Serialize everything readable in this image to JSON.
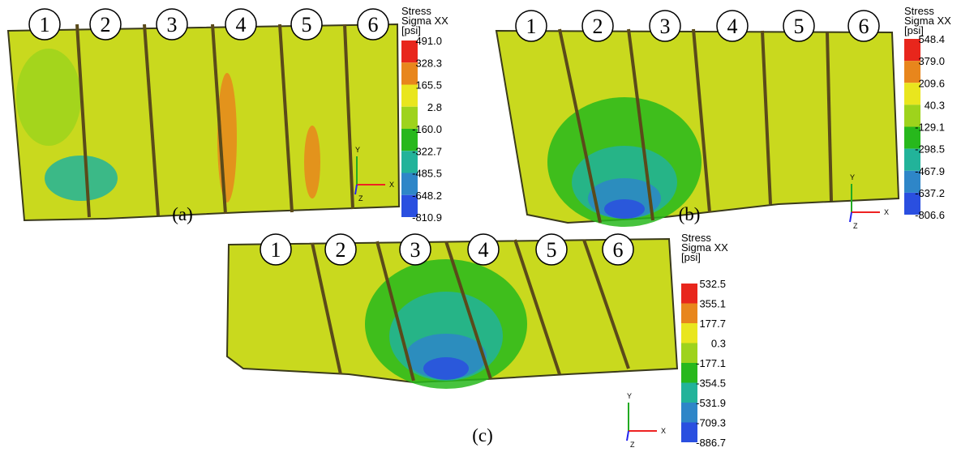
{
  "figure": {
    "panels": [
      {
        "caption": "(a)",
        "plate_labels": [
          "1",
          "2",
          "3",
          "4",
          "5",
          "6"
        ],
        "legend": {
          "title": [
            "Stress",
            "Sigma XX",
            "[psi]"
          ],
          "values": [
            "491.0",
            "328.3",
            "165.5",
            "2.8",
            "-160.0",
            "-322.7",
            "-485.5",
            "-648.2",
            "-810.9"
          ]
        },
        "axes": {
          "y": "Y",
          "x": "X",
          "z": "Z"
        }
      },
      {
        "caption": "(b)",
        "plate_labels": [
          "1",
          "2",
          "3",
          "4",
          "5",
          "6"
        ],
        "legend": {
          "title": [
            "Stress",
            "Sigma XX",
            "[psi]"
          ],
          "values": [
            "548.4",
            "379.0",
            "209.6",
            "40.3",
            "-129.1",
            "-298.5",
            "-467.9",
            "-637.2",
            "-806.6"
          ]
        },
        "axes": {
          "y": "Y",
          "x": "X",
          "z": "Z"
        }
      },
      {
        "caption": "(c)",
        "plate_labels": [
          "1",
          "2",
          "3",
          "4",
          "5",
          "6"
        ],
        "legend": {
          "title": [
            "Stress",
            "Sigma XX",
            "[psi]"
          ],
          "values": [
            "532.5",
            "355.1",
            "177.7",
            "0.3",
            "-177.1",
            "-354.5",
            "-531.9",
            "-709.3",
            "-886.7"
          ]
        },
        "axes": {
          "y": "Y",
          "x": "X",
          "z": "Z"
        }
      }
    ]
  }
}
